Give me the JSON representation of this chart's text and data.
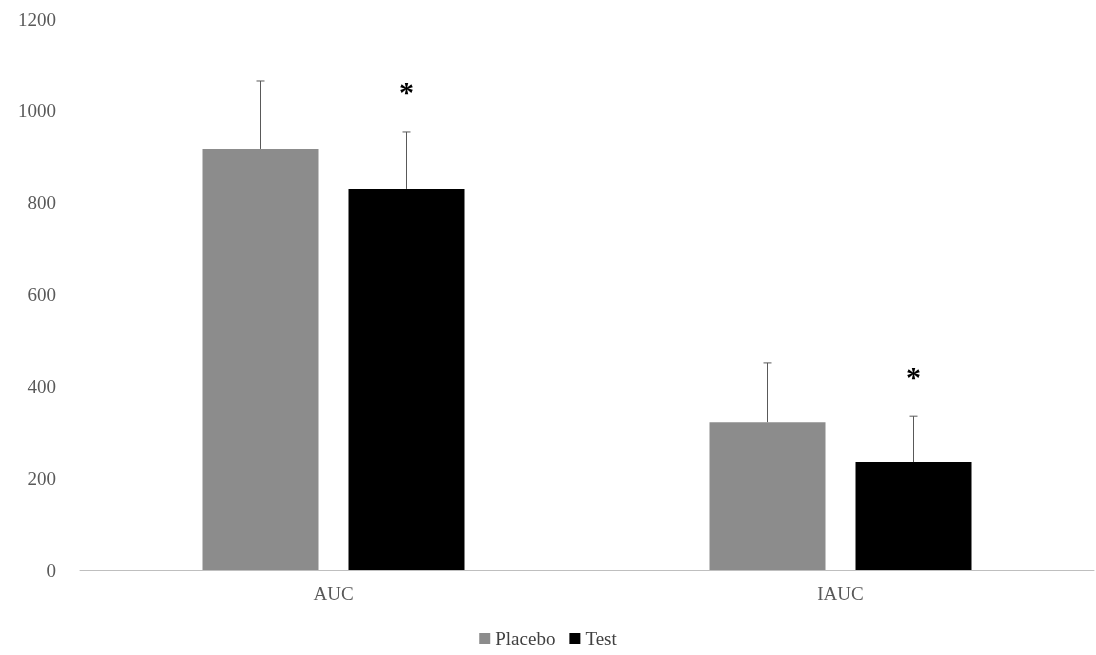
{
  "chart_data": {
    "type": "bar",
    "categories": [
      "AUC",
      "IAUC"
    ],
    "series": [
      {
        "name": "Placebo",
        "color": "#8c8c8c",
        "values": [
          917,
          322
        ],
        "errors": [
          [
            917,
            1065
          ],
          [
            322,
            451
          ]
        ]
      },
      {
        "name": "Test",
        "color": "#000000",
        "values": [
          830,
          235
        ],
        "errors": [
          [
            830,
            954
          ],
          [
            235,
            335
          ]
        ]
      }
    ],
    "ylim": [
      0,
      1200
    ],
    "yticks": [
      0,
      200,
      400,
      600,
      800,
      1000,
      1200
    ],
    "grid": false,
    "legend": "bottom",
    "annotations": [
      "*",
      "*"
    ]
  }
}
